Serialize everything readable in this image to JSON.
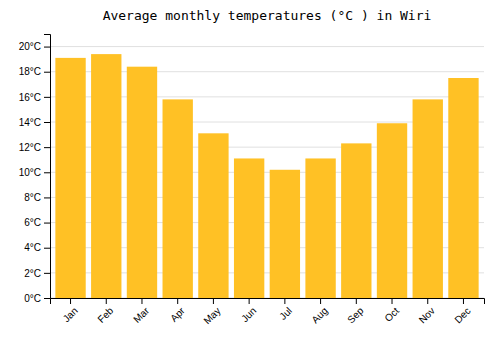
{
  "chart_data": {
    "type": "bar",
    "title": "Average monthly temperatures (°C ) in Wiri",
    "categories": [
      "Jan",
      "Feb",
      "Mar",
      "Apr",
      "May",
      "Jun",
      "Jul",
      "Aug",
      "Sep",
      "Oct",
      "Nov",
      "Dec"
    ],
    "values": [
      19.1,
      19.4,
      18.4,
      15.8,
      13.1,
      11.1,
      10.2,
      11.1,
      12.3,
      13.9,
      15.8,
      17.5
    ],
    "color": "#FFC125",
    "ylim": [
      0,
      21
    ],
    "yticks": [
      {
        "value": 0,
        "label": "0°C"
      },
      {
        "value": 2,
        "label": "2°C"
      },
      {
        "value": 4,
        "label": "4°C"
      },
      {
        "value": 6,
        "label": "6°C"
      },
      {
        "value": 8,
        "label": "8°C"
      },
      {
        "value": 10,
        "label": "10°C"
      },
      {
        "value": 12,
        "label": "12°C"
      },
      {
        "value": 14,
        "label": "14°C"
      },
      {
        "value": 16,
        "label": "16°C"
      },
      {
        "value": 18,
        "label": "18°C"
      },
      {
        "value": 20,
        "label": "20°C"
      }
    ],
    "grid": true
  }
}
